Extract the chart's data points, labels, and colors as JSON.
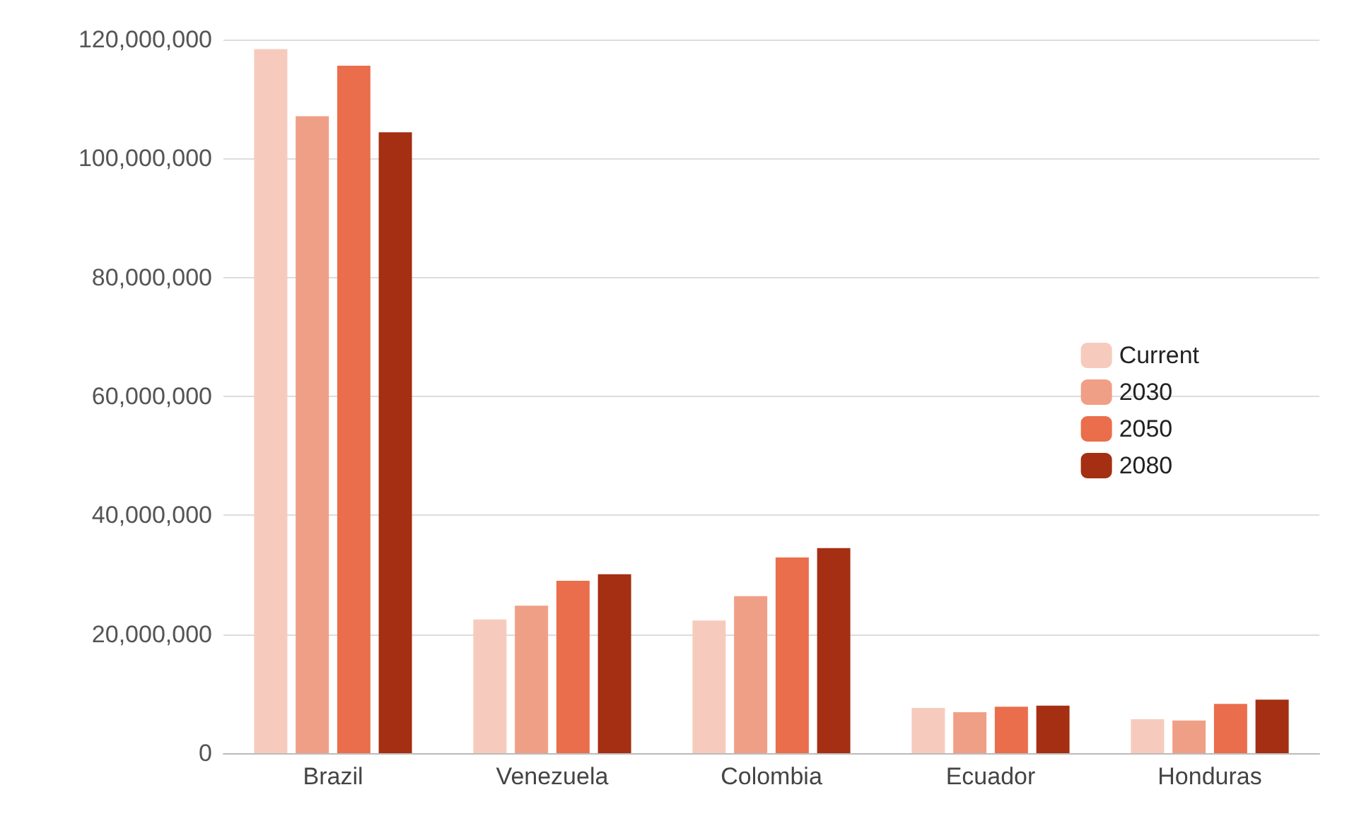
{
  "chart_data": {
    "type": "bar",
    "categories": [
      "Brazil",
      "Venezuela",
      "Colombia",
      "Ecuador",
      "Honduras"
    ],
    "series": [
      {
        "name": "Current",
        "color": "#f6cbbd",
        "values": [
          118400000,
          22500000,
          22300000,
          7600000,
          5700000
        ]
      },
      {
        "name": "2030",
        "color": "#f09f87",
        "values": [
          107100000,
          24800000,
          26400000,
          6900000,
          5500000
        ]
      },
      {
        "name": "2050",
        "color": "#ea6e4c",
        "values": [
          115600000,
          29000000,
          32900000,
          7800000,
          8300000
        ]
      },
      {
        "name": "2080",
        "color": "#a52f12",
        "values": [
          104400000,
          30100000,
          34500000,
          8000000,
          9000000
        ]
      }
    ],
    "ylim": [
      0,
      120000000
    ],
    "yticks": [
      0,
      {
        "value": 20000000,
        "label": "20,000,000"
      },
      {
        "value": 40000000,
        "label": "40,000,000"
      },
      {
        "value": 60000000,
        "label": "60,000,000"
      },
      {
        "value": 80000000,
        "label": "80,000,000"
      },
      {
        "value": 100000000,
        "label": "100,000,000"
      },
      {
        "value": 120000000,
        "label": "120,000,000"
      }
    ],
    "grid": "y",
    "legend": "right"
  }
}
